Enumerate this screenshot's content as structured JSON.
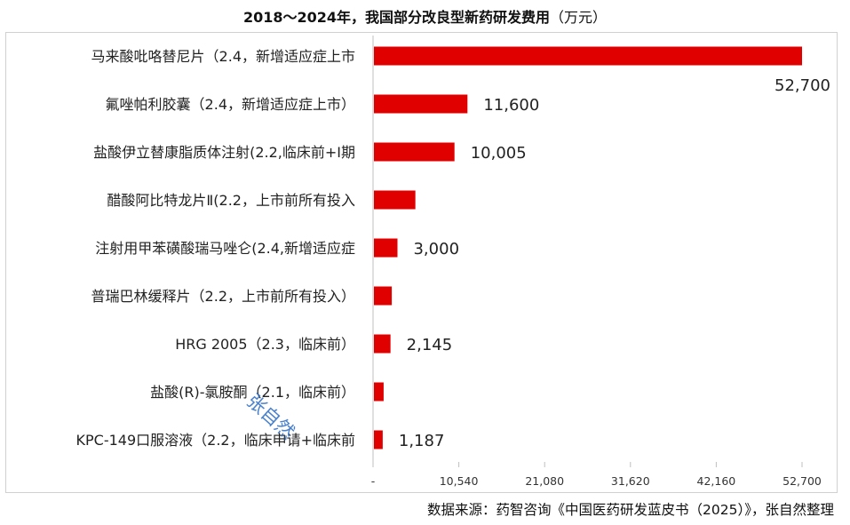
{
  "colors": {
    "bar": "#e00000",
    "axis": "#bfbfbf",
    "frame": "#d0d0d0",
    "watermark": "#2b6cc4"
  },
  "chart_title": "2018～2024年，我国部分改良型新药研发费用",
  "chart_unit": "（万元）",
  "source_note": "数据来源：药智咨询《中国医药研发蓝皮书（2025）》，张自然整理",
  "watermark": "张自然",
  "chart_data": {
    "type": "bar",
    "orientation": "horizontal",
    "title": "2018～2024年，我国部分改良型新药研发费用（万元）",
    "categories": [
      "马来酸吡咯替尼片（2.4，新增适应症上市",
      "氟唑帕利胶囊（2.4，新增适应症上市）",
      "盐酸伊立替康脂质体注射(2.2,临床前+I期",
      "醋酸阿比特龙片Ⅱ(2.2，上市前所有投入",
      "注射用甲苯磺酸瑞马唑仑(2.4,新增适应症",
      "普瑞巴林缓释片（2.2，上市前所有投入）",
      "HRG 2005（2.3，临床前）",
      "盐酸(R)-氯胺酮（2.1，临床前）",
      "KPC-149口服溶液（2.2，临床申请+临床前"
    ],
    "values": [
      52700,
      11600,
      10005,
      5200,
      3000,
      2300,
      2145,
      1300,
      1187
    ],
    "data_labels": [
      "52,700",
      "11,600",
      "10,005",
      "",
      "3,000",
      "",
      "2,145",
      "",
      "1,187"
    ],
    "xlim": [
      0,
      52700
    ],
    "xticks": [
      0,
      10540,
      21080,
      31620,
      42160,
      52700
    ],
    "xtick_labels": [
      "-",
      "10,540",
      "21,080",
      "31,620",
      "42,160",
      "52,700"
    ],
    "grid": false,
    "legend": "none"
  }
}
